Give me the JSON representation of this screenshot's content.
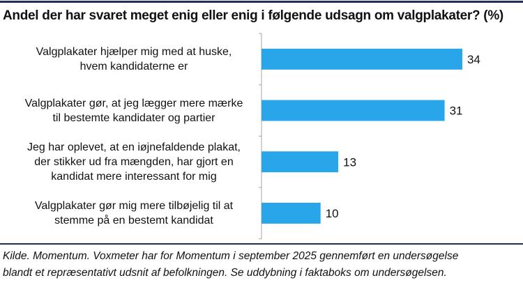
{
  "chart_data": {
    "type": "bar",
    "orientation": "horizontal",
    "title": "Andel der har svaret meget enig eller enig i følgende udsagn om valgplakater? (%)",
    "categories": [
      [
        "Valgplakater hjælper mig med at huske,",
        "hvem kandidaterne er"
      ],
      [
        "Valgplakater gør, at jeg lægger mere mærke",
        "til bestemte kandidater og partier"
      ],
      [
        "Jeg har oplevet, at en iøjnefaldende plakat,",
        "der stikker ud fra mængden, har gjort en",
        "kandidat mere interessant for mig"
      ],
      [
        "Valgplakater gør mig mere tilbøjelig til at",
        "stemme på en bestemt kandidat"
      ]
    ],
    "values": [
      34,
      31,
      13,
      10
    ],
    "value_labels": [
      "34",
      "31",
      "13",
      "10"
    ],
    "xlim": [
      0,
      40
    ],
    "grid": false,
    "bar_color": "#29a6ea",
    "xlabel": "",
    "ylabel": ""
  },
  "footer": {
    "lines": [
      "Kilde. Momentum. Voxmeter har for Momentum i september 2025 gennemført en undersøgelse",
      "blandt et repræsentativt udsnit af befolkningen. Se uddybning i faktaboks om undersøgelsen."
    ]
  },
  "colors": {
    "rule": "#1f2d5a",
    "axis": "#a6a6a6"
  }
}
